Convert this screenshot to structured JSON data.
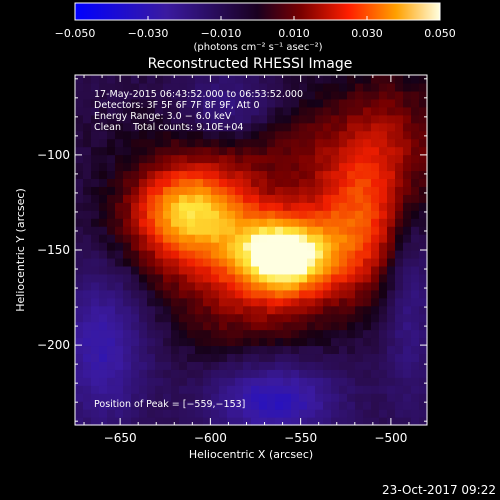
{
  "chart_data": {
    "type": "heatmap",
    "title": "Reconstructed RHESSI Image",
    "xlabel": "Heliocentric X (arcsec)",
    "ylabel": "Heliocentric Y (arcsec)",
    "xlim": [
      -675,
      -480
    ],
    "ylim": [
      -242,
      -58
    ],
    "x_ticks": [
      {
        "v": -650,
        "label": "−650"
      },
      {
        "v": -600,
        "label": "−600"
      },
      {
        "v": -550,
        "label": "−550"
      },
      {
        "v": -500,
        "label": "−500"
      }
    ],
    "y_ticks": [
      {
        "v": -100,
        "label": "−100"
      },
      {
        "v": -150,
        "label": "−150"
      },
      {
        "v": -200,
        "label": "−200"
      }
    ],
    "colorbar": {
      "min": -0.05,
      "max": 0.05,
      "units": "(photons cm⁻² s⁻¹ asec⁻²)",
      "ticks": [
        {
          "v": -0.05,
          "label": "−0.050"
        },
        {
          "v": -0.03,
          "label": "−0.030"
        },
        {
          "v": -0.01,
          "label": "−0.010"
        },
        {
          "v": 0.01,
          "label": "0.010"
        },
        {
          "v": 0.03,
          "label": "0.030"
        },
        {
          "v": 0.05,
          "label": "0.050"
        }
      ]
    },
    "annotations": [
      "17‐May‐2015 06:43:52.000 to 06:53:52.000",
      "Detectors: 3F 5F 6F 7F 8F 9F, Att 0",
      "Energy Range: 3.0 − 6.0 keV",
      "Clean    Total counts: 9.10E+04"
    ],
    "peak_label": "Position of Peak = [−559,−153]",
    "peak": [
      -559,
      -153
    ],
    "sources": [
      {
        "x": -559,
        "y": -153,
        "sx": 18,
        "sy": 14,
        "amp": 0.05
      },
      {
        "x": -612,
        "y": -128,
        "sx": 22,
        "sy": 16,
        "amp": 0.037
      },
      {
        "x": -590,
        "y": -150,
        "sx": 40,
        "sy": 22,
        "amp": 0.022
      },
      {
        "x": -520,
        "y": -138,
        "sx": 18,
        "sy": 26,
        "amp": 0.024
      },
      {
        "x": -560,
        "y": -95,
        "sx": 55,
        "sy": 20,
        "amp": 0.012
      },
      {
        "x": -500,
        "y": -100,
        "sx": 20,
        "sy": 35,
        "amp": 0.014
      },
      {
        "x": -575,
        "y": -190,
        "sx": 30,
        "sy": 22,
        "amp": 0.01
      }
    ],
    "negative_regions": [
      {
        "x": -660,
        "y": -200,
        "sx": 18,
        "sy": 30,
        "amp": -0.022
      },
      {
        "x": -565,
        "y": -228,
        "sx": 25,
        "sy": 15,
        "amp": -0.028
      },
      {
        "x": -590,
        "y": -75,
        "sx": 18,
        "sy": 12,
        "amp": -0.018
      },
      {
        "x": -490,
        "y": -175,
        "sx": 10,
        "sy": 40,
        "amp": -0.014
      }
    ]
  },
  "footer_date": "23‐Oct‐2017 09:22"
}
